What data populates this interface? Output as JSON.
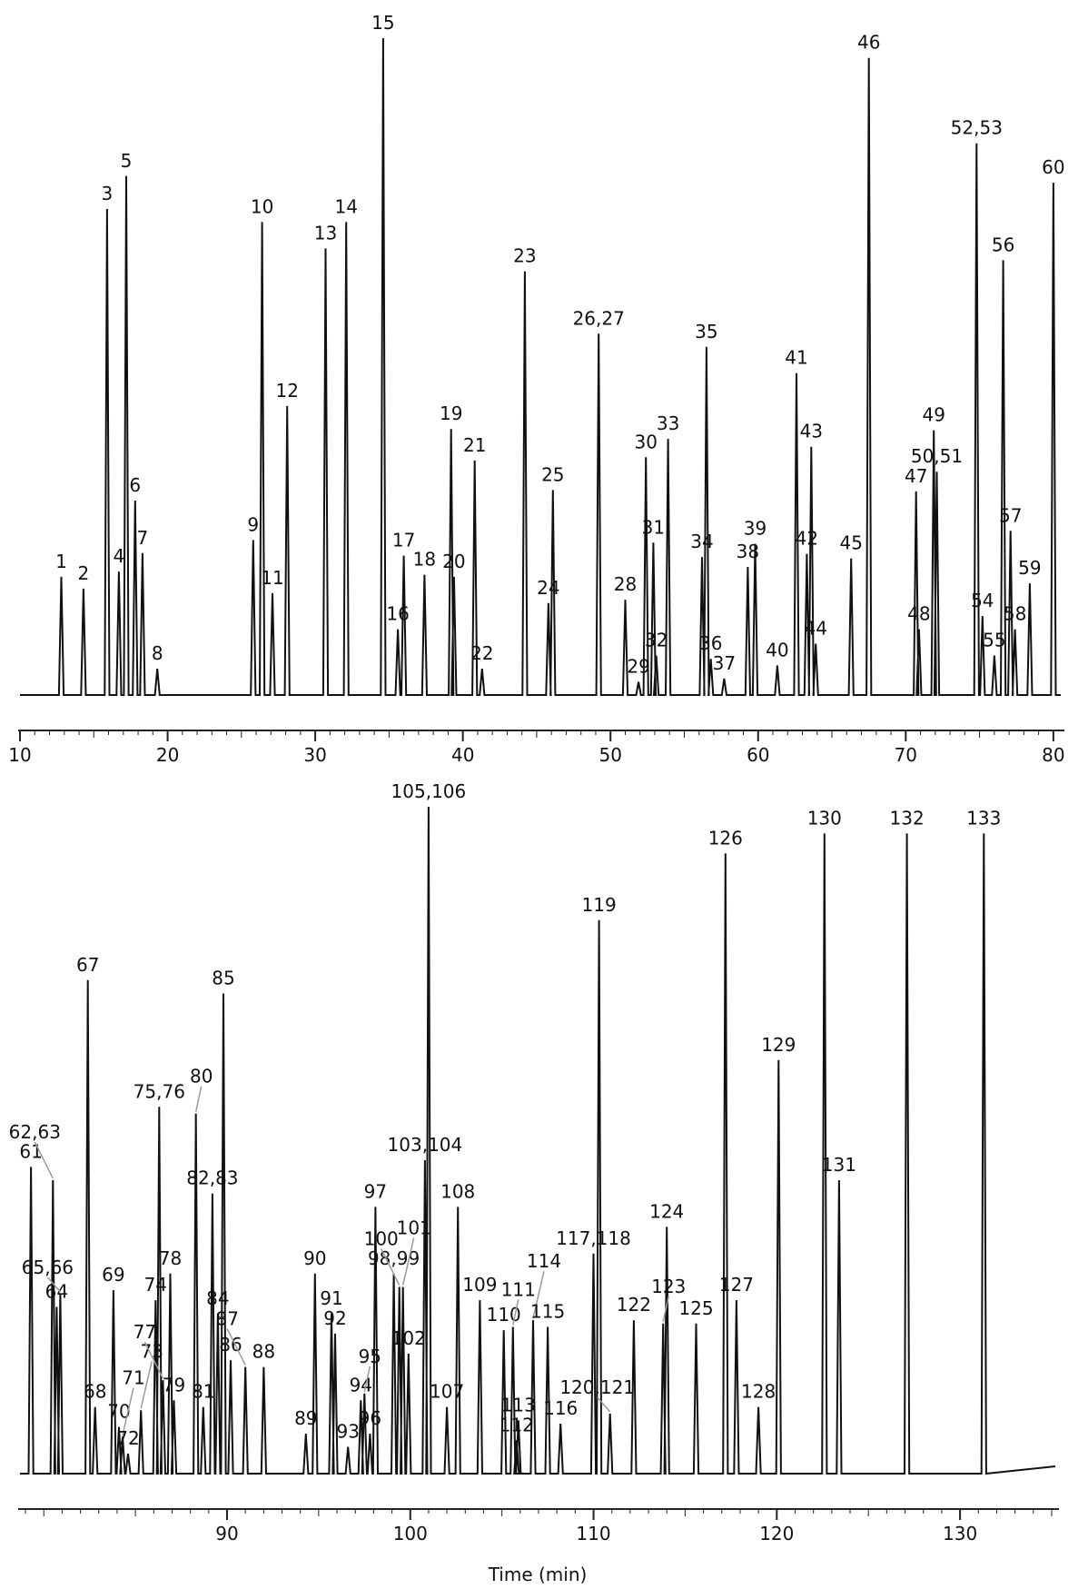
{
  "colors": {
    "trace": "#111111",
    "axis": "#222222",
    "leader": "#999999"
  },
  "chart_data": [
    {
      "type": "line",
      "title": "",
      "xlabel": "",
      "ylabel": "",
      "xlim": [
        10,
        80.5
      ],
      "ylim": [
        0,
        1000
      ],
      "grid": false,
      "xticks": [
        10,
        20,
        30,
        40,
        50,
        60,
        70,
        80
      ],
      "peaks": [
        {
          "label": "1",
          "t": 12.8,
          "h": 180
        },
        {
          "label": "2",
          "t": 14.3,
          "h": 162
        },
        {
          "label": "3",
          "t": 15.9,
          "h": 740
        },
        {
          "label": "4",
          "t": 16.7,
          "h": 188
        },
        {
          "label": "5",
          "t": 17.2,
          "h": 790
        },
        {
          "label": "6",
          "t": 17.8,
          "h": 296
        },
        {
          "label": "7",
          "t": 18.3,
          "h": 216
        },
        {
          "label": "8",
          "t": 19.3,
          "h": 40
        },
        {
          "label": "9",
          "t": 25.8,
          "h": 236
        },
        {
          "label": "10",
          "t": 26.4,
          "h": 720
        },
        {
          "label": "11",
          "t": 27.1,
          "h": 155
        },
        {
          "label": "12",
          "t": 28.1,
          "h": 440
        },
        {
          "label": "13",
          "t": 30.7,
          "h": 680
        },
        {
          "label": "14",
          "t": 32.1,
          "h": 720
        },
        {
          "label": "15",
          "t": 34.6,
          "h": 1000
        },
        {
          "label": "16",
          "t": 35.6,
          "h": 100
        },
        {
          "label": "17",
          "t": 36.0,
          "h": 212
        },
        {
          "label": "18",
          "t": 37.4,
          "h": 183
        },
        {
          "label": "19",
          "t": 39.2,
          "h": 405
        },
        {
          "label": "20",
          "t": 39.4,
          "h": 180
        },
        {
          "label": "21",
          "t": 40.8,
          "h": 357
        },
        {
          "label": "22",
          "t": 41.3,
          "h": 40
        },
        {
          "label": "23",
          "t": 44.2,
          "h": 645
        },
        {
          "label": "24",
          "t": 45.8,
          "h": 140
        },
        {
          "label": "25",
          "t": 46.1,
          "h": 312
        },
        {
          "label": "26,27",
          "t": 49.2,
          "h": 550
        },
        {
          "label": "28",
          "t": 51.0,
          "h": 145
        },
        {
          "label": "29",
          "t": 51.9,
          "h": 20
        },
        {
          "label": "30",
          "t": 52.4,
          "h": 362
        },
        {
          "label": "31",
          "t": 52.9,
          "h": 232
        },
        {
          "label": "32",
          "t": 53.1,
          "h": 60
        },
        {
          "label": "33",
          "t": 53.9,
          "h": 390
        },
        {
          "label": "34",
          "t": 56.2,
          "h": 210
        },
        {
          "label": "35",
          "t": 56.5,
          "h": 530
        },
        {
          "label": "36",
          "t": 56.8,
          "h": 55
        },
        {
          "label": "37",
          "t": 57.7,
          "h": 25
        },
        {
          "label": "38",
          "t": 59.3,
          "h": 195
        },
        {
          "label": "39",
          "t": 59.8,
          "h": 230
        },
        {
          "label": "40",
          "t": 61.3,
          "h": 45
        },
        {
          "label": "41",
          "t": 62.6,
          "h": 490
        },
        {
          "label": "42",
          "t": 63.3,
          "h": 215
        },
        {
          "label": "43",
          "t": 63.6,
          "h": 378
        },
        {
          "label": "44",
          "t": 63.9,
          "h": 78
        },
        {
          "label": "45",
          "t": 66.3,
          "h": 208
        },
        {
          "label": "46",
          "t": 67.5,
          "h": 970
        },
        {
          "label": "47",
          "t": 70.7,
          "h": 310
        },
        {
          "label": "48",
          "t": 70.9,
          "h": 100
        },
        {
          "label": "49",
          "t": 71.9,
          "h": 403
        },
        {
          "label": "50,51",
          "t": 72.1,
          "h": 340
        },
        {
          "label": "52,53",
          "t": 74.8,
          "h": 840
        },
        {
          "label": "54",
          "t": 75.2,
          "h": 120
        },
        {
          "label": "55",
          "t": 76.0,
          "h": 60
        },
        {
          "label": "56",
          "t": 76.6,
          "h": 662
        },
        {
          "label": "57",
          "t": 77.1,
          "h": 250
        },
        {
          "label": "58",
          "t": 77.4,
          "h": 100
        },
        {
          "label": "59",
          "t": 78.4,
          "h": 170
        },
        {
          "label": "60",
          "t": 80.0,
          "h": 780
        }
      ]
    },
    {
      "type": "line",
      "title": "",
      "xlabel": "Time (min)",
      "ylabel": "",
      "xlim": [
        78.7,
        135.2
      ],
      "ylim": [
        0,
        1000
      ],
      "grid": false,
      "xticks": [
        90,
        100,
        110,
        120,
        130
      ],
      "peaks": [
        {
          "label": "61",
          "t": 79.3,
          "h": 460
        },
        {
          "label": "62,63",
          "t": 80.5,
          "h": 440
        },
        {
          "label": "64",
          "t": 80.7,
          "h": 250
        },
        {
          "label": "65,66",
          "t": 80.9,
          "h": 270
        },
        {
          "label": "67",
          "t": 82.4,
          "h": 740
        },
        {
          "label": "68",
          "t": 82.8,
          "h": 100
        },
        {
          "label": "69",
          "t": 83.8,
          "h": 275
        },
        {
          "label": "70",
          "t": 84.1,
          "h": 70
        },
        {
          "label": "71",
          "t": 84.3,
          "h": 55
        },
        {
          "label": "72",
          "t": 84.6,
          "h": 30
        },
        {
          "label": "73",
          "t": 85.3,
          "h": 95
        },
        {
          "label": "74",
          "t": 86.1,
          "h": 260
        },
        {
          "label": "75,76",
          "t": 86.3,
          "h": 550
        },
        {
          "label": "77",
          "t": 86.5,
          "h": 140
        },
        {
          "label": "78",
          "t": 86.9,
          "h": 300
        },
        {
          "label": "79",
          "t": 87.1,
          "h": 110
        },
        {
          "label": "80",
          "t": 88.3,
          "h": 540
        },
        {
          "label": "81",
          "t": 88.7,
          "h": 100
        },
        {
          "label": "82,83",
          "t": 89.2,
          "h": 420
        },
        {
          "label": "84",
          "t": 89.5,
          "h": 240
        },
        {
          "label": "85",
          "t": 89.8,
          "h": 720
        },
        {
          "label": "86",
          "t": 90.2,
          "h": 170
        },
        {
          "label": "87",
          "t": 91.0,
          "h": 160
        },
        {
          "label": "88",
          "t": 92.0,
          "h": 160
        },
        {
          "label": "89",
          "t": 94.3,
          "h": 60
        },
        {
          "label": "90",
          "t": 94.8,
          "h": 300
        },
        {
          "label": "91",
          "t": 95.7,
          "h": 240
        },
        {
          "label": "92",
          "t": 95.9,
          "h": 210
        },
        {
          "label": "93",
          "t": 96.6,
          "h": 40
        },
        {
          "label": "94",
          "t": 97.3,
          "h": 110
        },
        {
          "label": "95",
          "t": 97.5,
          "h": 120
        },
        {
          "label": "96",
          "t": 97.8,
          "h": 60
        },
        {
          "label": "97",
          "t": 98.1,
          "h": 400
        },
        {
          "label": "98,99",
          "t": 99.1,
          "h": 300
        },
        {
          "label": "100",
          "t": 99.4,
          "h": 280
        },
        {
          "label": "101",
          "t": 99.6,
          "h": 280
        },
        {
          "label": "102",
          "t": 99.9,
          "h": 180
        },
        {
          "label": "103,104",
          "t": 100.8,
          "h": 470
        },
        {
          "label": "105,106",
          "t": 101.0,
          "h": 1000
        },
        {
          "label": "107",
          "t": 102.0,
          "h": 100
        },
        {
          "label": "108",
          "t": 102.6,
          "h": 400
        },
        {
          "label": "109",
          "t": 103.8,
          "h": 260
        },
        {
          "label": "110",
          "t": 105.1,
          "h": 215
        },
        {
          "label": "111",
          "t": 105.6,
          "h": 220
        },
        {
          "label": "112",
          "t": 105.8,
          "h": 50
        },
        {
          "label": "113",
          "t": 105.9,
          "h": 80
        },
        {
          "label": "114",
          "t": 106.7,
          "h": 230
        },
        {
          "label": "115",
          "t": 107.5,
          "h": 220
        },
        {
          "label": "116",
          "t": 108.2,
          "h": 75
        },
        {
          "label": "117,118",
          "t": 110.0,
          "h": 330
        },
        {
          "label": "119",
          "t": 110.3,
          "h": 830
        },
        {
          "label": "120,121",
          "t": 110.9,
          "h": 90
        },
        {
          "label": "122",
          "t": 112.2,
          "h": 230
        },
        {
          "label": "123",
          "t": 113.8,
          "h": 225
        },
        {
          "label": "124",
          "t": 114.0,
          "h": 370
        },
        {
          "label": "125",
          "t": 115.6,
          "h": 225
        },
        {
          "label": "126",
          "t": 117.2,
          "h": 930
        },
        {
          "label": "127",
          "t": 117.8,
          "h": 260
        },
        {
          "label": "128",
          "t": 119.0,
          "h": 100
        },
        {
          "label": "129",
          "t": 120.1,
          "h": 620
        },
        {
          "label": "130",
          "t": 122.6,
          "h": 960
        },
        {
          "label": "131",
          "t": 123.4,
          "h": 440
        },
        {
          "label": "132",
          "t": 127.1,
          "h": 960
        },
        {
          "label": "133",
          "t": 131.3,
          "h": 960
        }
      ]
    }
  ]
}
